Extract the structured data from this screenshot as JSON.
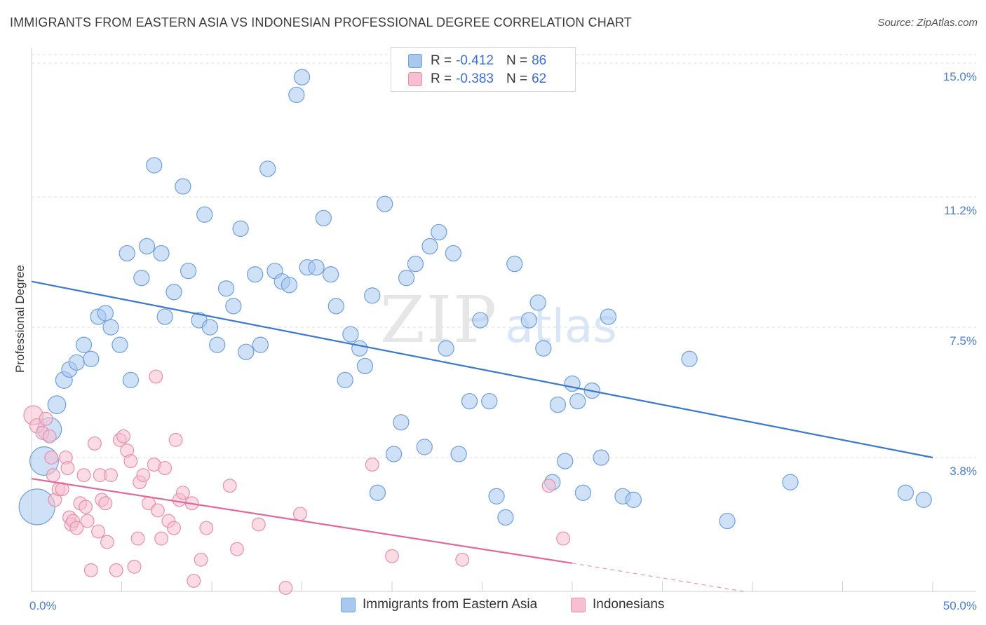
{
  "title": "IMMIGRANTS FROM EASTERN ASIA VS INDONESIAN PROFESSIONAL DEGREE CORRELATION CHART",
  "source": "Source: ZipAtlas.com",
  "watermark": {
    "zip": "ZIP",
    "atlas": "atlas"
  },
  "legend_top": [
    {
      "r_label": "R = ",
      "r_value": "-0.412",
      "n_label": "N = ",
      "n_value": "86",
      "color": "#a8c8f0",
      "stroke": "#6f9fdc"
    },
    {
      "r_label": "R = ",
      "r_value": "-0.383",
      "n_label": "N = ",
      "n_value": "62",
      "color": "#f8bfd0",
      "stroke": "#e78fac"
    }
  ],
  "legend_bottom": [
    {
      "label": "Immigrants from Eastern Asia",
      "color": "#a8c8f0",
      "stroke": "#6f9fdc"
    },
    {
      "label": "Indonesians",
      "color": "#f8bfd0",
      "stroke": "#e78fac"
    }
  ],
  "chart_data": {
    "type": "scatter",
    "ylabel": "Professional Degree",
    "xlabel": "",
    "xlim": [
      0,
      50
    ],
    "ylim": [
      0,
      15.4
    ],
    "x_tick_labels": [
      {
        "value": 0,
        "label": "0.0%"
      },
      {
        "value": 50,
        "label": "50.0%"
      }
    ],
    "y_tick_labels": [
      {
        "value": 3.8,
        "label": "3.8%"
      },
      {
        "value": 7.5,
        "label": "7.5%"
      },
      {
        "value": 11.2,
        "label": "11.2%"
      },
      {
        "value": 15.0,
        "label": "15.0%"
      }
    ],
    "grid": true,
    "series": [
      {
        "name": "Immigrants from Eastern Asia",
        "color": "#a8c8f0",
        "stroke": "#6f9fdc",
        "trend": {
          "x": [
            0,
            50
          ],
          "y": [
            8.8,
            3.8
          ],
          "color": "#3a78d0"
        },
        "points": [
          [
            0.3,
            2.4,
            3
          ],
          [
            0.7,
            3.7,
            2.4
          ],
          [
            1.0,
            4.6,
            2
          ],
          [
            1.4,
            5.3,
            1.5
          ],
          [
            1.8,
            6.0,
            1.4
          ],
          [
            2.1,
            6.3,
            1.3
          ],
          [
            2.5,
            6.5,
            1.3
          ],
          [
            2.9,
            7.0,
            1.3
          ],
          [
            3.3,
            6.6,
            1.3
          ],
          [
            3.7,
            7.8,
            1.3
          ],
          [
            4.1,
            7.9,
            1.3
          ],
          [
            4.4,
            7.5,
            1.3
          ],
          [
            4.9,
            7.0,
            1.3
          ],
          [
            5.3,
            9.6,
            1.3
          ],
          [
            5.5,
            6.0,
            1.3
          ],
          [
            6.1,
            8.9,
            1.3
          ],
          [
            6.4,
            9.8,
            1.3
          ],
          [
            6.8,
            12.1,
            1.3
          ],
          [
            7.2,
            9.6,
            1.3
          ],
          [
            7.4,
            7.8,
            1.3
          ],
          [
            7.9,
            8.5,
            1.3
          ],
          [
            8.4,
            11.5,
            1.3
          ],
          [
            8.7,
            9.1,
            1.3
          ],
          [
            9.3,
            7.7,
            1.3
          ],
          [
            9.6,
            10.7,
            1.3
          ],
          [
            9.9,
            7.5,
            1.3
          ],
          [
            10.3,
            7.0,
            1.3
          ],
          [
            10.8,
            8.6,
            1.3
          ],
          [
            11.2,
            8.1,
            1.3
          ],
          [
            11.6,
            10.3,
            1.3
          ],
          [
            11.9,
            6.8,
            1.3
          ],
          [
            12.4,
            9.0,
            1.3
          ],
          [
            12.7,
            7.0,
            1.3
          ],
          [
            13.1,
            12.0,
            1.3
          ],
          [
            13.5,
            9.1,
            1.3
          ],
          [
            13.9,
            8.8,
            1.3
          ],
          [
            14.3,
            8.7,
            1.3
          ],
          [
            14.7,
            14.1,
            1.3
          ],
          [
            15.0,
            14.6,
            1.3
          ],
          [
            15.3,
            9.2,
            1.3
          ],
          [
            15.8,
            9.2,
            1.3
          ],
          [
            16.2,
            10.6,
            1.3
          ],
          [
            16.6,
            9.0,
            1.3
          ],
          [
            16.9,
            8.1,
            1.3
          ],
          [
            17.4,
            6.0,
            1.3
          ],
          [
            17.7,
            7.3,
            1.3
          ],
          [
            18.2,
            6.9,
            1.3
          ],
          [
            18.5,
            6.4,
            1.3
          ],
          [
            18.9,
            8.4,
            1.3
          ],
          [
            19.2,
            2.8,
            1.3
          ],
          [
            19.6,
            11.0,
            1.3
          ],
          [
            20.1,
            3.9,
            1.3
          ],
          [
            20.5,
            4.8,
            1.3
          ],
          [
            20.8,
            8.9,
            1.3
          ],
          [
            21.3,
            9.3,
            1.3
          ],
          [
            21.8,
            4.1,
            1.3
          ],
          [
            22.1,
            9.8,
            1.3
          ],
          [
            22.6,
            10.2,
            1.3
          ],
          [
            23.0,
            6.9,
            1.3
          ],
          [
            23.4,
            9.6,
            1.3
          ],
          [
            23.7,
            3.9,
            1.3
          ],
          [
            24.3,
            5.4,
            1.3
          ],
          [
            24.9,
            7.7,
            1.3
          ],
          [
            25.4,
            5.4,
            1.3
          ],
          [
            25.8,
            2.7,
            1.3
          ],
          [
            26.3,
            2.1,
            1.3
          ],
          [
            26.8,
            9.3,
            1.3
          ],
          [
            27.6,
            7.7,
            1.3
          ],
          [
            28.1,
            8.2,
            1.3
          ],
          [
            28.4,
            6.9,
            1.3
          ],
          [
            28.9,
            3.1,
            1.3
          ],
          [
            29.2,
            5.3,
            1.3
          ],
          [
            29.6,
            3.7,
            1.3
          ],
          [
            30.0,
            5.9,
            1.3
          ],
          [
            30.3,
            5.4,
            1.3
          ],
          [
            30.6,
            2.8,
            1.3
          ],
          [
            31.1,
            5.7,
            1.3
          ],
          [
            31.6,
            3.8,
            1.3
          ],
          [
            32.0,
            7.8,
            1.3
          ],
          [
            32.8,
            2.7,
            1.3
          ],
          [
            33.4,
            2.6,
            1.3
          ],
          [
            36.5,
            6.6,
            1.3
          ],
          [
            38.6,
            2.0,
            1.3
          ],
          [
            42.1,
            3.1,
            1.3
          ],
          [
            48.5,
            2.8,
            1.3
          ],
          [
            49.5,
            2.6,
            1.3
          ]
        ]
      },
      {
        "name": "Indonesians",
        "color": "#f8bfd0",
        "stroke": "#e78fac",
        "trend": {
          "x": [
            0,
            30
          ],
          "y": [
            3.2,
            0.8
          ],
          "color": "#e2689a",
          "dash_to": [
            39.5,
            0
          ]
        },
        "points": [
          [
            0.1,
            5.0,
            1.6
          ],
          [
            0.3,
            4.7,
            1.2
          ],
          [
            0.6,
            4.5,
            1.1
          ],
          [
            0.8,
            4.9,
            1.1
          ],
          [
            1.0,
            4.4,
            1.1
          ],
          [
            1.1,
            3.8,
            1.1
          ],
          [
            1.2,
            3.3,
            1.1
          ],
          [
            1.3,
            2.6,
            1.1
          ],
          [
            1.5,
            2.9,
            1.1
          ],
          [
            1.7,
            2.9,
            1.1
          ],
          [
            1.9,
            3.8,
            1.1
          ],
          [
            2.0,
            3.5,
            1.1
          ],
          [
            2.1,
            2.1,
            1.1
          ],
          [
            2.2,
            1.9,
            1.1
          ],
          [
            2.3,
            2.0,
            1.1
          ],
          [
            2.5,
            1.8,
            1.1
          ],
          [
            2.7,
            2.5,
            1.1
          ],
          [
            2.9,
            3.3,
            1.1
          ],
          [
            3.0,
            2.4,
            1.1
          ],
          [
            3.1,
            2.0,
            1.1
          ],
          [
            3.3,
            0.6,
            1.1
          ],
          [
            3.5,
            4.2,
            1.1
          ],
          [
            3.7,
            1.7,
            1.1
          ],
          [
            3.8,
            3.3,
            1.1
          ],
          [
            3.9,
            2.6,
            1.1
          ],
          [
            4.1,
            2.5,
            1.1
          ],
          [
            4.2,
            1.4,
            1.1
          ],
          [
            4.4,
            3.3,
            1.1
          ],
          [
            4.7,
            0.6,
            1.1
          ],
          [
            4.9,
            4.3,
            1.1
          ],
          [
            5.1,
            4.4,
            1.1
          ],
          [
            5.3,
            4.0,
            1.1
          ],
          [
            5.5,
            3.7,
            1.1
          ],
          [
            5.7,
            0.7,
            1.1
          ],
          [
            5.9,
            1.5,
            1.1
          ],
          [
            6.0,
            3.1,
            1.1
          ],
          [
            6.2,
            3.3,
            1.1
          ],
          [
            6.5,
            2.5,
            1.1
          ],
          [
            6.8,
            3.6,
            1.1
          ],
          [
            7.0,
            2.3,
            1.1
          ],
          [
            7.2,
            1.5,
            1.1
          ],
          [
            7.4,
            3.5,
            1.1
          ],
          [
            7.6,
            2.0,
            1.1
          ],
          [
            7.9,
            1.8,
            1.1
          ],
          [
            8.0,
            4.3,
            1.1
          ],
          [
            8.2,
            2.6,
            1.1
          ],
          [
            8.4,
            2.8,
            1.1
          ],
          [
            8.9,
            2.5,
            1.1
          ],
          [
            9.0,
            0.3,
            1.1
          ],
          [
            9.4,
            0.9,
            1.1
          ],
          [
            9.7,
            1.8,
            1.1
          ],
          [
            11.0,
            3.0,
            1.1
          ],
          [
            11.4,
            1.2,
            1.1
          ],
          [
            12.6,
            1.9,
            1.1
          ],
          [
            14.1,
            0.1,
            1.1
          ],
          [
            14.9,
            2.2,
            1.1
          ],
          [
            18.9,
            3.6,
            1.1
          ],
          [
            20.0,
            1.0,
            1.1
          ],
          [
            23.9,
            0.9,
            1.1
          ],
          [
            28.7,
            3.0,
            1.1
          ],
          [
            29.5,
            1.5,
            1.1
          ],
          [
            6.9,
            6.1,
            1.1
          ]
        ]
      }
    ]
  }
}
